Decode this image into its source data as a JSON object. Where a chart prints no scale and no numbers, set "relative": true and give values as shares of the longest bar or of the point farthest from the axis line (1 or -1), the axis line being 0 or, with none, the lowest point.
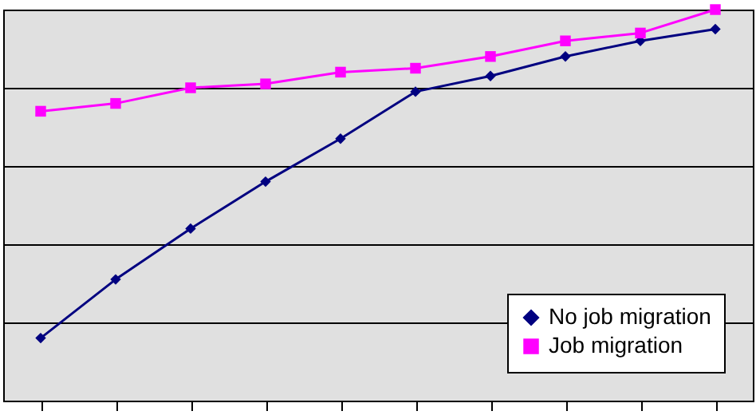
{
  "chart_data": {
    "type": "line",
    "relative": true,
    "categories": [
      null,
      null,
      null,
      null,
      null,
      null,
      null,
      null,
      null,
      null
    ],
    "series": [
      {
        "name": "No job migration",
        "color": "#000080",
        "marker": "diamond",
        "values": [
          0.16,
          0.31,
          0.44,
          0.56,
          0.67,
          0.79,
          0.83,
          0.88,
          0.92,
          0.95
        ]
      },
      {
        "name": "Job migration",
        "color": "#ff00ff",
        "marker": "square",
        "values": [
          0.74,
          0.76,
          0.8,
          0.81,
          0.84,
          0.85,
          0.88,
          0.92,
          0.94,
          1.0
        ]
      }
    ],
    "grid": "y",
    "legend": "bottom right",
    "line_style": "solid"
  }
}
